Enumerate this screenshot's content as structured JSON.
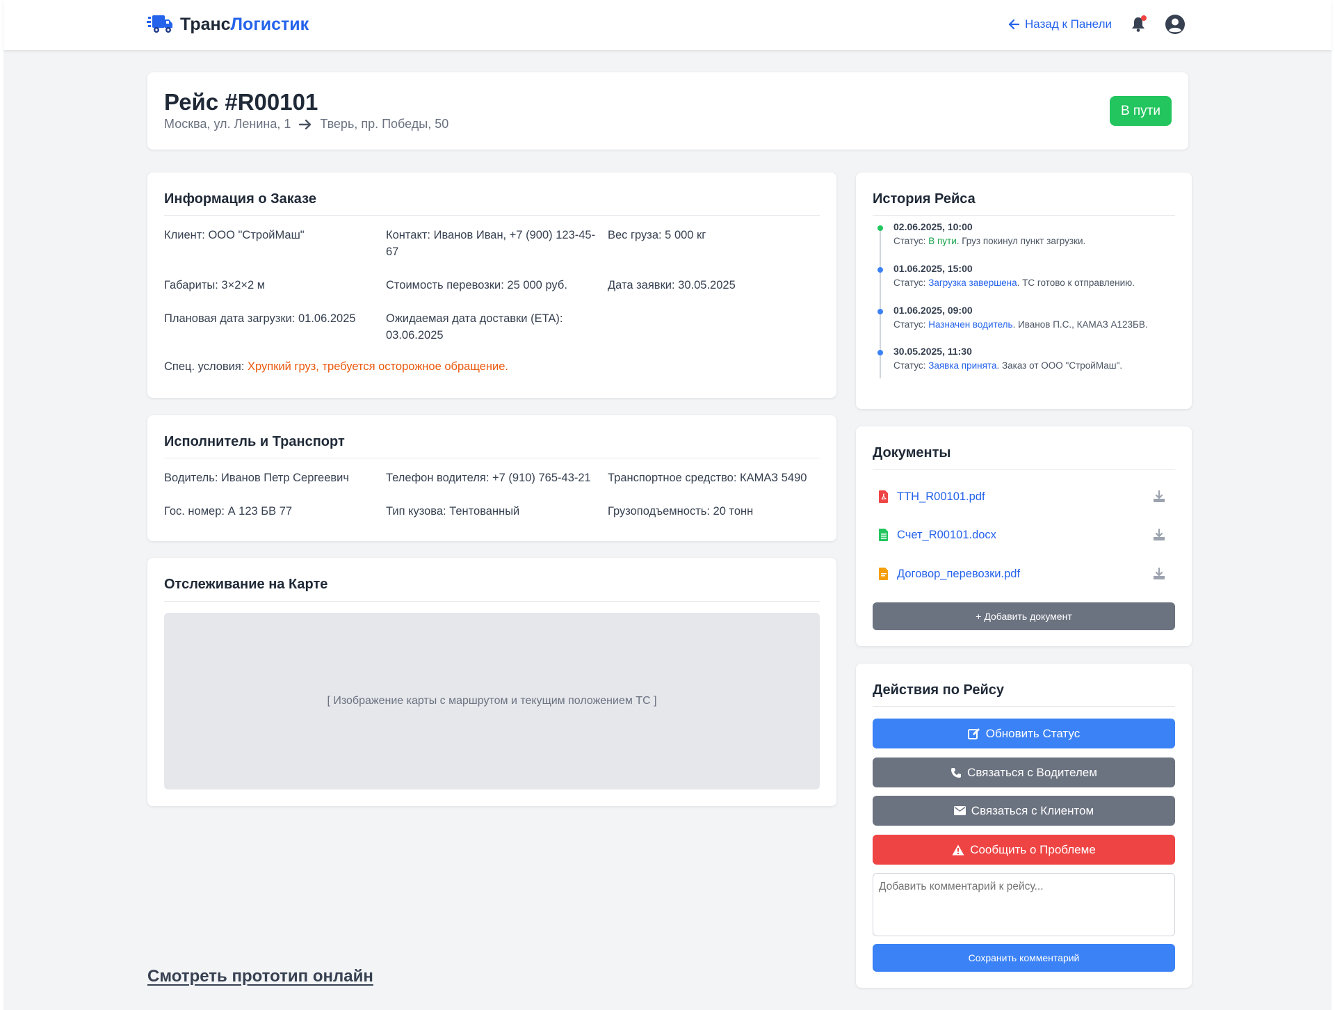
{
  "brand": {
    "name_part1": "Транс",
    "name_part2": "Логистик",
    "logo_icon": "truck-icon"
  },
  "nav": {
    "back_label": "Назад к Панели",
    "bell_icon": "bell-icon",
    "avatar_icon": "user-circle-icon"
  },
  "trip": {
    "title": "Рейс #R00101",
    "from": "Москва, ул. Ленина, 1",
    "to": "Тверь, пр. Победы, 50",
    "status": "В пути",
    "status_color": "#22c55e"
  },
  "order_info": {
    "title": "Информация о Заказе",
    "rows": [
      [
        "Клиент: ООО \"СтройМаш\"",
        "Контакт: Иванов Иван, +7 (900) 123-45-67",
        "Вес груза: 5 000 кг"
      ],
      [
        "Габариты: 3×2×2 м",
        "Стоимость перевозки: 25 000 руб.",
        "Дата заявки: 30.05.2025"
      ],
      [
        "Плановая дата загрузки: 01.06.2025",
        "Ожидаемая дата доставки (ETA): 03.06.2025",
        ""
      ]
    ],
    "special_label": "Спец. условия:",
    "special_value": "Хрупкий груз, требуется осторожное обращение."
  },
  "carrier": {
    "title": "Исполнитель и Транспорт",
    "rows": [
      [
        "Водитель: Иванов Петр Сергеевич",
        "Телефон водителя: +7 (910) 765-43-21",
        "Транспортное средство: КАМАЗ 5490"
      ],
      [
        "Гос. номер: А 123 БВ 77",
        "Тип кузова: Тентованный",
        "Грузоподъемность: 20 тонн"
      ]
    ]
  },
  "map": {
    "title": "Отслеживание на Карте",
    "placeholder": "[ Изображение карты с маршрутом и текущим положением ТС ]"
  },
  "history": {
    "title": "История Рейса",
    "items": [
      {
        "date": "02.06.2025, 10:00",
        "prefix": "Статус:",
        "status": "В пути",
        "suffix": ". Груз покинул пункт загрузки.",
        "color": "#16a34a"
      },
      {
        "date": "01.06.2025, 15:00",
        "prefix": "Статус:",
        "status": "Загрузка завершена",
        "suffix": ". ТС готово к отправлению.",
        "color": "#2563eb"
      },
      {
        "date": "01.06.2025, 09:00",
        "prefix": "Статус:",
        "status": "Назначен водитель",
        "suffix": ". Иванов П.С., КАМАЗ А123БВ.",
        "color": "#2563eb"
      },
      {
        "date": "30.05.2025, 11:30",
        "prefix": "Статус:",
        "status": "Заявка принята",
        "suffix": ". Заказ от ООО \"СтройМаш\".",
        "color": "#2563eb"
      }
    ]
  },
  "documents": {
    "title": "Документы",
    "files": [
      {
        "name": "ТТН_R00101.pdf",
        "icon": "pdf-file-icon",
        "color": "#ef4444"
      },
      {
        "name": "Счет_R00101.docx",
        "icon": "spreadsheet-file-icon",
        "color": "#22c55e"
      },
      {
        "name": "Договор_перевозки.pdf",
        "icon": "document-file-icon",
        "color": "#f59e0b"
      }
    ],
    "add_label": "+  Добавить документ"
  },
  "actions": {
    "title": "Действия по Рейсу",
    "update_status": "Обновить Статус",
    "contact_driver": "Связаться с Водителем",
    "contact_client": "Связаться с Клиентом",
    "report_problem": "Сообщить о Проблеме",
    "comment_placeholder": "Добавить комментарий к рейсу...",
    "save_comment": "Сохранить комментарий"
  },
  "footer": {
    "prototype_link": "Смотреть прототип онлайн"
  }
}
